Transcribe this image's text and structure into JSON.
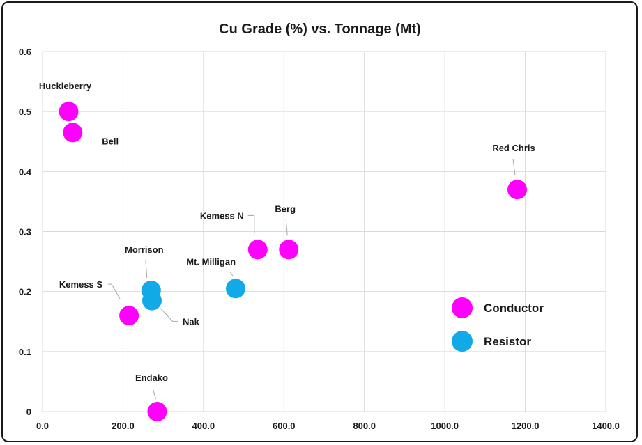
{
  "chart_data": {
    "type": "scatter",
    "title": "Cu Grade (%) vs. Tonnage (Mt)",
    "xlabel": "",
    "ylabel": "",
    "xlim": [
      0,
      1400
    ],
    "ylim": [
      0,
      0.6
    ],
    "x_ticks": [
      "0.0",
      "200.0",
      "400.0",
      "600.0",
      "800.0",
      "1000.0",
      "1200.0",
      "1400.0"
    ],
    "y_ticks": [
      "0",
      "0.1",
      "0.2",
      "0.3",
      "0.4",
      "0.5",
      "0.6"
    ],
    "grid": true,
    "legend_position": "right",
    "series": [
      {
        "name": "Conductor",
        "color": "#ff00ff",
        "points": [
          {
            "label": "Huckleberry",
            "x": 65,
            "y": 0.5
          },
          {
            "label": "Bell",
            "x": 75,
            "y": 0.465
          },
          {
            "label": "Red Chris",
            "x": 1180,
            "y": 0.37
          },
          {
            "label": "Kemess N",
            "x": 535,
            "y": 0.27
          },
          {
            "label": "Berg",
            "x": 612,
            "y": 0.27
          },
          {
            "label": "Kemess S",
            "x": 215,
            "y": 0.16
          },
          {
            "label": "Endako",
            "x": 285,
            "y": 0.0
          }
        ]
      },
      {
        "name": "Resistor",
        "color": "#11a9e8",
        "points": [
          {
            "label": "Morrison",
            "x": 270,
            "y": 0.202
          },
          {
            "label": "Nak",
            "x": 272,
            "y": 0.185
          },
          {
            "label": "Mt. Milligan",
            "x": 480,
            "y": 0.205
          }
        ]
      }
    ]
  }
}
